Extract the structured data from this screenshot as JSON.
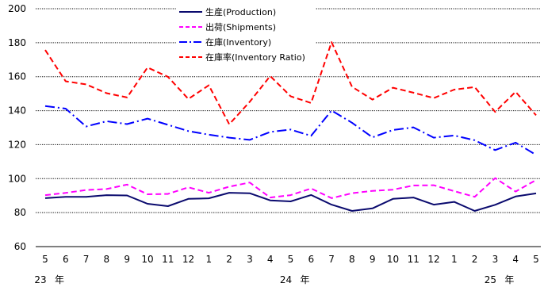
{
  "chart_data": {
    "type": "line",
    "categories": [
      "5",
      "6",
      "7",
      "8",
      "9",
      "10",
      "11",
      "12",
      "1",
      "2",
      "3",
      "4",
      "5",
      "6",
      "7",
      "8",
      "9",
      "10",
      "11",
      "12",
      "1",
      "2",
      "3",
      "4",
      "5"
    ],
    "year_labels": [
      {
        "index": 0,
        "year": "23",
        "suffix": "年"
      },
      {
        "index": 12,
        "year": "24",
        "suffix": "年"
      },
      {
        "index": 22,
        "year": "25",
        "suffix": "年"
      }
    ],
    "ylim": [
      60,
      200
    ],
    "yticks": [
      60,
      80,
      100,
      120,
      140,
      160,
      180,
      200
    ],
    "grid": "horizontal-dotted",
    "legend_position": "top-center",
    "series": [
      {
        "name": "生産(Production)",
        "color": "#0a0a6e",
        "dash": "solid",
        "values": [
          88.5,
          89.3,
          89.3,
          90.3,
          90.1,
          85.2,
          83.8,
          88.1,
          88.4,
          91.7,
          91.4,
          87.2,
          86.6,
          90.4,
          84.7,
          81.0,
          82.5,
          88.1,
          88.9,
          84.7,
          86.3,
          81.0,
          84.6,
          89.5,
          91.3
        ]
      },
      {
        "name": "出荷(Shipments)",
        "color": "#ff00ff",
        "dash": "dash",
        "values": [
          90.3,
          91.6,
          93.3,
          93.9,
          96.5,
          90.8,
          91.0,
          94.9,
          91.7,
          95.3,
          97.7,
          88.9,
          90.3,
          94.2,
          88.5,
          91.4,
          92.8,
          93.5,
          96.0,
          96.1,
          92.6,
          89.3,
          100.3,
          92.4,
          99.2
        ]
      },
      {
        "name": "在庫(Inventory)",
        "color": "#0000ff",
        "dash": "dashdot",
        "values": [
          142.7,
          141.2,
          130.7,
          133.8,
          132.1,
          135.3,
          131.7,
          128.0,
          125.9,
          124.1,
          122.8,
          127.5,
          128.9,
          125.2,
          140.1,
          132.9,
          124.3,
          128.6,
          130.2,
          124.1,
          125.4,
          122.6,
          116.8,
          121.2,
          114.0
        ]
      },
      {
        "name": "在庫率(Inventory Ratio)",
        "color": "#ff0000",
        "dash": "dash",
        "values": [
          175.7,
          157.3,
          155.5,
          150.3,
          147.8,
          165.4,
          159.9,
          146.9,
          154.9,
          132.0,
          145.2,
          160.4,
          148.5,
          144.5,
          180.3,
          154.1,
          146.5,
          153.5,
          150.6,
          147.4,
          152.4,
          153.9,
          139.3,
          151.1,
          137.3
        ]
      }
    ]
  }
}
